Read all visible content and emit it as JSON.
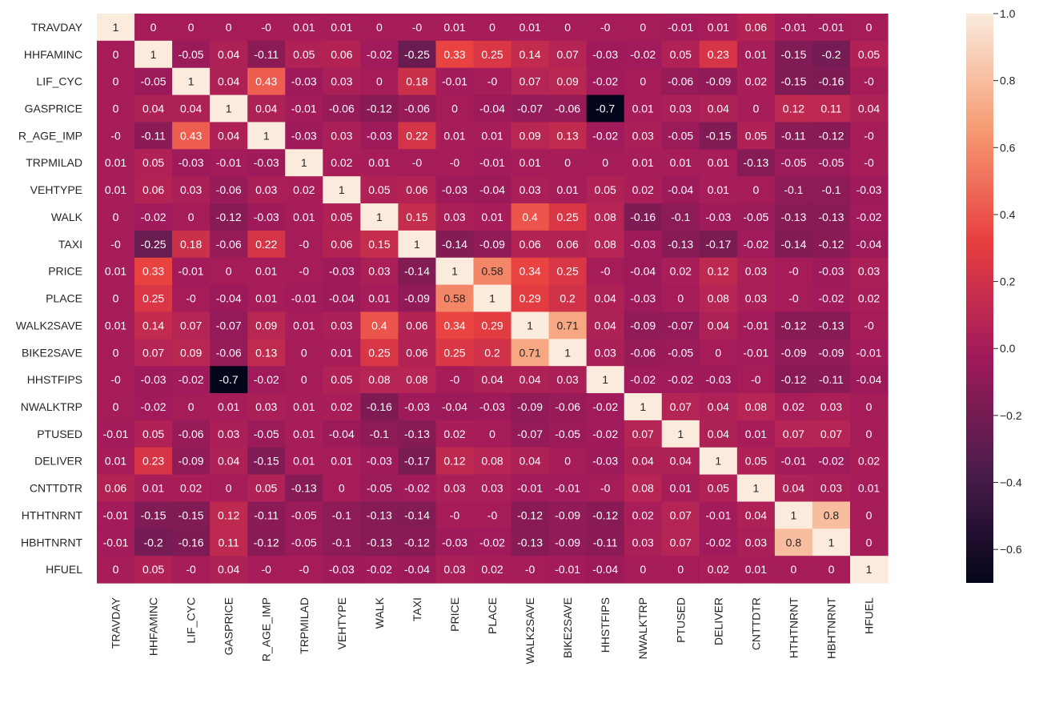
{
  "chart_data": {
    "type": "heatmap",
    "title": "",
    "xlabel": "",
    "ylabel": "",
    "variables": [
      "TRAVDAY",
      "HHFAMINC",
      "LIF_CYC",
      "GASPRICE",
      "R_AGE_IMP",
      "TRPMILAD",
      "VEHTYPE",
      "WALK",
      "TAXI",
      "PRICE",
      "PLACE",
      "WALK2SAVE",
      "BIKE2SAVE",
      "HHSTFIPS",
      "NWALKTRP",
      "PTUSED",
      "DELIVER",
      "CNTTDTR",
      "HTHTNRNT",
      "HBHTNRNT",
      "HFUEL"
    ],
    "row_labels": [
      "TRAVDAY",
      "HHFAMINC",
      "LIF_CYC",
      "GASPRICE",
      "R_AGE_IMP",
      "TRPMILAD",
      "VEHTYPE",
      "WALK",
      "TAXI",
      "PRICE",
      "PLACE",
      "WALK2SAVE",
      "BIKE2SAVE",
      "HHSTFIPS",
      "NWALKTRP",
      "PTUSED",
      "DELIVER",
      "CNTTDTR",
      "HTHTNRNT",
      "HBHTNRNT",
      "HFUEL"
    ],
    "row_labels_displayed": [
      "TRAVDAY",
      "HHFAMINC",
      "LIF_CYC",
      "GASPRICE",
      "R_AGE_IMP",
      "TRPMILAD",
      "VEHTYPE",
      "WALK",
      "TAXI",
      "PRICE",
      "PLACE",
      "WALK2SAVE",
      "BIKE2SAVE",
      "HHSTFIPS",
      "NWALKTRP",
      "PTUSED",
      "DELIVER",
      "CNTTDTR",
      "HTHTNRNT",
      "HBHTNRNT",
      "HFUEL"
    ],
    "matrix": [
      [
        "1",
        "0",
        "0",
        "0",
        "-0",
        "0.01",
        "0.01",
        "0",
        "-0",
        "0.01",
        "0",
        "0.01",
        "0",
        "-0",
        "0",
        "-0.01",
        "0.01",
        "0.06",
        "-0.01",
        "-0.01",
        "0"
      ],
      [
        "0",
        "1",
        "-0.05",
        "0.04",
        "-0.11",
        "0.05",
        "0.06",
        "-0.02",
        "-0.25",
        "0.33",
        "0.25",
        "0.14",
        "0.07",
        "-0.03",
        "-0.02",
        "0.05",
        "0.23",
        "0.01",
        "-0.15",
        "-0.2",
        "0.05"
      ],
      [
        "0",
        "-0.05",
        "1",
        "0.04",
        "0.43",
        "-0.03",
        "0.03",
        "0",
        "0.18",
        "-0.01",
        "-0",
        "0.07",
        "0.09",
        "-0.02",
        "0",
        "-0.06",
        "-0.09",
        "0.02",
        "-0.15",
        "-0.16",
        "-0"
      ],
      [
        "0",
        "0.04",
        "0.04",
        "1",
        "0.04",
        "-0.01",
        "-0.06",
        "-0.12",
        "-0.06",
        "0",
        "-0.04",
        "-0.07",
        "-0.06",
        "-0.7",
        "0.01",
        "0.03",
        "0.04",
        "0",
        "0.12",
        "0.11",
        "0.04"
      ],
      [
        "-0",
        "-0.11",
        "0.43",
        "0.04",
        "1",
        "-0.03",
        "0.03",
        "-0.03",
        "0.22",
        "0.01",
        "0.01",
        "0.09",
        "0.13",
        "-0.02",
        "0.03",
        "-0.05",
        "-0.15",
        "0.05",
        "-0.11",
        "-0.12",
        "-0"
      ],
      [
        "0.01",
        "0.05",
        "-0.03",
        "-0.01",
        "-0.03",
        "1",
        "0.02",
        "0.01",
        "-0",
        "-0",
        "-0.01",
        "0.01",
        "0",
        "0",
        "0.01",
        "0.01",
        "0.01",
        "-0.13",
        "-0.05",
        "-0.05",
        "-0"
      ],
      [
        "0.01",
        "0.06",
        "0.03",
        "-0.06",
        "0.03",
        "0.02",
        "1",
        "0.05",
        "0.06",
        "-0.03",
        "-0.04",
        "0.03",
        "0.01",
        "0.05",
        "0.02",
        "-0.04",
        "0.01",
        "0",
        "-0.1",
        "-0.1",
        "-0.03"
      ],
      [
        "0",
        "-0.02",
        "0",
        "-0.12",
        "-0.03",
        "0.01",
        "0.05",
        "1",
        "0.15",
        "0.03",
        "0.01",
        "0.4",
        "0.25",
        "0.08",
        "-0.16",
        "-0.1",
        "-0.03",
        "-0.05",
        "-0.13",
        "-0.13",
        "-0.02"
      ],
      [
        "-0",
        "-0.25",
        "0.18",
        "-0.06",
        "0.22",
        "-0",
        "0.06",
        "0.15",
        "1",
        "-0.14",
        "-0.09",
        "0.06",
        "0.06",
        "0.08",
        "-0.03",
        "-0.13",
        "-0.17",
        "-0.02",
        "-0.14",
        "-0.12",
        "-0.04"
      ],
      [
        "0.01",
        "0.33",
        "-0.01",
        "0",
        "0.01",
        "-0",
        "-0.03",
        "0.03",
        "-0.14",
        "1",
        "0.58",
        "0.34",
        "0.25",
        "-0",
        "-0.04",
        "0.02",
        "0.12",
        "0.03",
        "-0",
        "-0.03",
        "0.03"
      ],
      [
        "0",
        "0.25",
        "-0",
        "-0.04",
        "0.01",
        "-0.01",
        "-0.04",
        "0.01",
        "-0.09",
        "0.58",
        "1",
        "0.29",
        "0.2",
        "0.04",
        "-0.03",
        "0",
        "0.08",
        "0.03",
        "-0",
        "-0.02",
        "0.02"
      ],
      [
        "0.01",
        "0.14",
        "0.07",
        "-0.07",
        "0.09",
        "0.01",
        "0.03",
        "0.4",
        "0.06",
        "0.34",
        "0.29",
        "1",
        "0.71",
        "0.04",
        "-0.09",
        "-0.07",
        "0.04",
        "-0.01",
        "-0.12",
        "-0.13",
        "-0"
      ],
      [
        "0",
        "0.07",
        "0.09",
        "-0.06",
        "0.13",
        "0",
        "0.01",
        "0.25",
        "0.06",
        "0.25",
        "0.2",
        "0.71",
        "1",
        "0.03",
        "-0.06",
        "-0.05",
        "0",
        "-0.01",
        "-0.09",
        "-0.09",
        "-0.01"
      ],
      [
        "-0",
        "-0.03",
        "-0.02",
        "-0.7",
        "-0.02",
        "0",
        "0.05",
        "0.08",
        "0.08",
        "-0",
        "0.04",
        "0.04",
        "0.03",
        "1",
        "-0.02",
        "-0.02",
        "-0.03",
        "-0",
        "-0.12",
        "-0.11",
        "-0.04"
      ],
      [
        "0",
        "-0.02",
        "0",
        "0.01",
        "0.03",
        "0.01",
        "0.02",
        "-0.16",
        "-0.03",
        "-0.04",
        "-0.03",
        "-0.09",
        "-0.06",
        "-0.02",
        "1",
        "0.07",
        "0.04",
        "0.08",
        "0.02",
        "0.03",
        "0"
      ],
      [
        "-0.01",
        "0.05",
        "-0.06",
        "0.03",
        "-0.05",
        "0.01",
        "-0.04",
        "-0.1",
        "-0.13",
        "0.02",
        "0",
        "-0.07",
        "-0.05",
        "-0.02",
        "0.07",
        "1",
        "0.04",
        "0.01",
        "0.07",
        "0.07",
        "0"
      ],
      [
        "0.01",
        "0.23",
        "-0.09",
        "0.04",
        "-0.15",
        "0.01",
        "0.01",
        "-0.03",
        "-0.17",
        "0.12",
        "0.08",
        "0.04",
        "0",
        "-0.03",
        "0.04",
        "0.04",
        "1",
        "0.05",
        "-0.01",
        "-0.02",
        "0.02"
      ],
      [
        "0.06",
        "0.01",
        "0.02",
        "0",
        "0.05",
        "-0.13",
        "0",
        "-0.05",
        "-0.02",
        "0.03",
        "0.03",
        "-0.01",
        "-0.01",
        "-0",
        "0.08",
        "0.01",
        "0.05",
        "1",
        "0.04",
        "0.03",
        "0.01"
      ],
      [
        "-0.01",
        "-0.15",
        "-0.15",
        "0.12",
        "-0.11",
        "-0.05",
        "-0.1",
        "-0.13",
        "-0.14",
        "-0",
        "-0",
        "-0.12",
        "-0.09",
        "-0.12",
        "0.02",
        "0.07",
        "-0.01",
        "0.04",
        "1",
        "0.8",
        "0"
      ],
      [
        "-0.01",
        "-0.2",
        "-0.16",
        "0.11",
        "-0.12",
        "-0.05",
        "-0.1",
        "-0.13",
        "-0.12",
        "-0.03",
        "-0.02",
        "-0.13",
        "-0.09",
        "-0.11",
        "0.03",
        "0.07",
        "-0.02",
        "0.03",
        "0.8",
        "1",
        "0"
      ],
      [
        "0",
        "0.05",
        "-0",
        "0.04",
        "-0",
        "-0",
        "-0.03",
        "-0.02",
        "-0.04",
        "0.03",
        "0.02",
        "-0",
        "-0.01",
        "-0.04",
        "0",
        "0",
        "0.02",
        "0.01",
        "0",
        "0",
        "1"
      ]
    ],
    "colorbar": {
      "vmin": -0.7,
      "vmax": 1.0,
      "ticks": [
        1.0,
        0.8,
        0.6,
        0.4,
        0.2,
        0.0,
        -0.2,
        -0.4,
        -0.6
      ],
      "tick_labels": [
        "1.0",
        "0.8",
        "0.6",
        "0.4",
        "0.2",
        "0.0",
        "−0.2",
        "−0.4",
        "−0.6"
      ],
      "colormap": "rocket",
      "colormap_stops": [
        "#03051a",
        "#4c1d4b",
        "#a11a5b",
        "#e83f3f",
        "#f69c73",
        "#faebdd"
      ]
    }
  }
}
